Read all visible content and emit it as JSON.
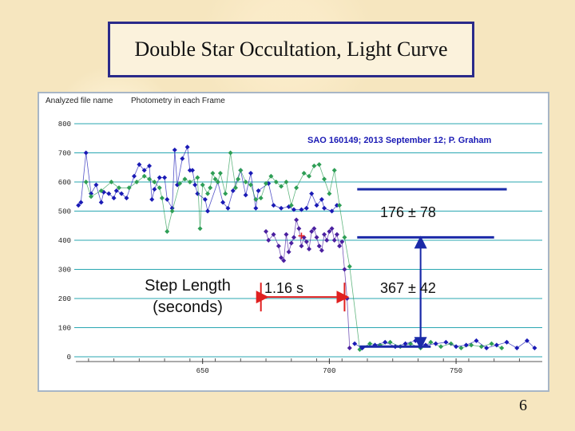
{
  "slide": {
    "title": "Double Star Occultation,  Light Curve",
    "page_number": "6"
  },
  "header": {
    "analyzed_label": "Analyzed file name",
    "photometry_label": "Photometry in each Frame"
  },
  "annotations": {
    "star_info": "SAO 160149;  2013 September 12;  P.  Graham",
    "upper_value": "176  ±  78",
    "lower_value": "367  ±  42",
    "step_length_line1": "Step Length",
    "step_length_line2": "(seconds)",
    "step_duration": "1.16 s"
  },
  "colors": {
    "grid": "#2aa7b2",
    "series_blue": "#1a1ab5",
    "series_green": "#2e9e55",
    "series_purple": "#4a1fa0",
    "marker_red": "#e02020",
    "level_line": "#1a2aa8",
    "arrow": "#1a2aa8",
    "panel_border": "#a8b6c6",
    "title_border": "#2a2a8a"
  },
  "chart_data": {
    "type": "scatter",
    "title": "",
    "xlabel": "",
    "ylabel": "",
    "xlim": [
      600,
      784
    ],
    "ylim": [
      0,
      800
    ],
    "x_ticks": [
      650,
      700,
      750
    ],
    "y_ticks": [
      0,
      100,
      200,
      300,
      400,
      500,
      600,
      700,
      800
    ],
    "grid": true,
    "levels": [
      {
        "from_x": 711,
        "to_x": 770,
        "value": 575
      },
      {
        "from_x": 711,
        "to_x": 765,
        "value": 410
      },
      {
        "from_x": 712,
        "to_x": 740,
        "value": 35
      }
    ],
    "step_measure": {
      "x_start": 673,
      "x_end": 706,
      "y": 205
    },
    "series": [
      {
        "color_key": "series_blue",
        "points": [
          [
            601,
            520
          ],
          [
            602,
            530
          ],
          [
            604,
            700
          ],
          [
            606,
            560
          ],
          [
            608,
            590
          ],
          [
            610,
            530
          ],
          [
            611,
            565
          ],
          [
            613,
            560
          ],
          [
            615,
            545
          ],
          [
            616,
            570
          ],
          [
            618,
            560
          ],
          [
            620,
            545
          ],
          [
            623,
            620
          ],
          [
            625,
            660
          ],
          [
            627,
            640
          ],
          [
            629,
            655
          ],
          [
            630,
            540
          ],
          [
            631,
            575
          ],
          [
            633,
            615
          ],
          [
            635,
            615
          ],
          [
            636,
            540
          ],
          [
            638,
            510
          ],
          [
            639,
            710
          ],
          [
            640,
            590
          ],
          [
            642,
            680
          ],
          [
            644,
            720
          ],
          [
            645,
            640
          ],
          [
            646,
            640
          ],
          [
            647,
            590
          ],
          [
            648,
            560
          ],
          [
            651,
            540
          ],
          [
            652,
            500
          ],
          [
            656,
            600
          ],
          [
            658,
            530
          ],
          [
            660,
            510
          ],
          [
            662,
            570
          ],
          [
            665,
            640
          ],
          [
            667,
            555
          ],
          [
            669,
            630
          ],
          [
            671,
            510
          ],
          [
            672,
            570
          ],
          [
            676,
            595
          ],
          [
            678,
            520
          ],
          [
            681,
            510
          ],
          [
            684,
            515
          ],
          [
            686,
            505
          ],
          [
            689,
            505
          ],
          [
            691,
            510
          ],
          [
            693,
            560
          ],
          [
            695,
            520
          ],
          [
            697,
            540
          ],
          [
            698,
            510
          ],
          [
            701,
            500
          ],
          [
            703,
            520
          ]
        ]
      },
      {
        "color_key": "series_green",
        "points": [
          [
            604,
            600
          ],
          [
            606,
            550
          ],
          [
            610,
            570
          ],
          [
            614,
            600
          ],
          [
            617,
            580
          ],
          [
            621,
            580
          ],
          [
            624,
            600
          ],
          [
            627,
            620
          ],
          [
            629,
            610
          ],
          [
            631,
            600
          ],
          [
            633,
            580
          ],
          [
            634,
            545
          ],
          [
            636,
            430
          ],
          [
            638,
            500
          ],
          [
            641,
            595
          ],
          [
            643,
            610
          ],
          [
            645,
            600
          ],
          [
            648,
            615
          ],
          [
            649,
            440
          ],
          [
            650,
            590
          ],
          [
            652,
            560
          ],
          [
            653,
            580
          ],
          [
            654,
            630
          ],
          [
            655,
            610
          ],
          [
            656,
            600
          ],
          [
            657,
            630
          ],
          [
            659,
            560
          ],
          [
            661,
            700
          ],
          [
            663,
            580
          ],
          [
            664,
            610
          ],
          [
            665,
            640
          ],
          [
            667,
            600
          ],
          [
            669,
            590
          ],
          [
            671,
            540
          ],
          [
            673,
            545
          ],
          [
            675,
            595
          ],
          [
            677,
            620
          ],
          [
            679,
            600
          ],
          [
            681,
            585
          ],
          [
            683,
            600
          ],
          [
            685,
            520
          ],
          [
            687,
            580
          ],
          [
            690,
            630
          ],
          [
            692,
            620
          ],
          [
            694,
            655
          ],
          [
            696,
            660
          ],
          [
            698,
            610
          ],
          [
            700,
            560
          ],
          [
            702,
            640
          ],
          [
            704,
            520
          ],
          [
            706,
            410
          ],
          [
            708,
            310
          ],
          [
            712,
            25
          ],
          [
            716,
            45
          ],
          [
            720,
            40
          ],
          [
            724,
            50
          ],
          [
            728,
            35
          ],
          [
            732,
            45
          ],
          [
            736,
            30
          ],
          [
            740,
            50
          ],
          [
            744,
            35
          ],
          [
            748,
            45
          ],
          [
            752,
            30
          ],
          [
            756,
            40
          ],
          [
            760,
            35
          ],
          [
            764,
            45
          ],
          [
            768,
            30
          ]
        ]
      },
      {
        "color_key": "series_purple",
        "points": [
          [
            675,
            430
          ],
          [
            676,
            400
          ],
          [
            678,
            420
          ],
          [
            680,
            380
          ],
          [
            681,
            340
          ],
          [
            682,
            330
          ],
          [
            683,
            420
          ],
          [
            684,
            360
          ],
          [
            685,
            390
          ],
          [
            686,
            410
          ],
          [
            687,
            470
          ],
          [
            688,
            440
          ],
          [
            689,
            380
          ],
          [
            690,
            410
          ],
          [
            691,
            395
          ],
          [
            692,
            370
          ],
          [
            693,
            430
          ],
          [
            694,
            440
          ],
          [
            695,
            410
          ],
          [
            696,
            380
          ],
          [
            697,
            365
          ],
          [
            698,
            420
          ],
          [
            699,
            400
          ],
          [
            700,
            430
          ],
          [
            701,
            440
          ],
          [
            702,
            400
          ],
          [
            703,
            420
          ],
          [
            704,
            380
          ],
          [
            705,
            395
          ],
          [
            706,
            300
          ],
          [
            707,
            200
          ],
          [
            708,
            30
          ]
        ]
      },
      {
        "color_key": "series_blue",
        "points": [
          [
            710,
            45
          ],
          [
            713,
            30
          ],
          [
            718,
            40
          ],
          [
            722,
            50
          ],
          [
            726,
            35
          ],
          [
            730,
            45
          ],
          [
            734,
            55
          ],
          [
            738,
            40
          ],
          [
            742,
            45
          ],
          [
            746,
            50
          ],
          [
            750,
            35
          ],
          [
            754,
            40
          ],
          [
            758,
            55
          ],
          [
            762,
            30
          ],
          [
            766,
            40
          ],
          [
            770,
            50
          ],
          [
            774,
            30
          ],
          [
            778,
            55
          ],
          [
            781,
            30
          ]
        ]
      },
      {
        "color_key": "marker_red",
        "points": [
          [
            689,
            415
          ]
        ]
      }
    ]
  }
}
